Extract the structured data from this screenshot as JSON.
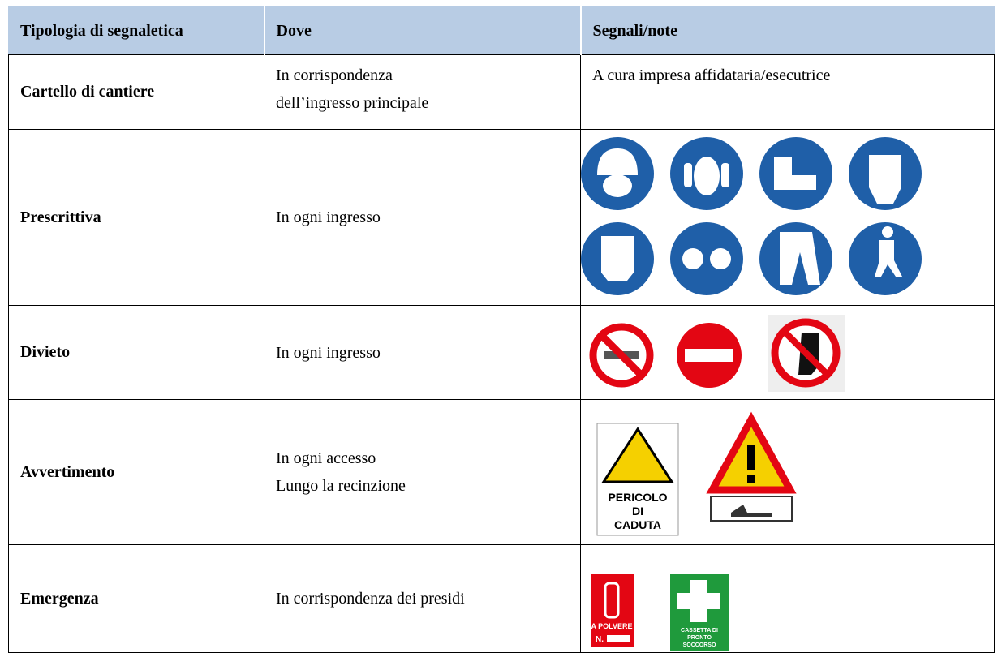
{
  "table": {
    "header": [
      "Tipologia di segnaletica",
      "Dove",
      "Segnali/note"
    ],
    "rows": [
      {
        "type": "Cartello di cantiere",
        "where": [
          "In corrispondenza",
          "dell’ingresso principale"
        ],
        "notes": "A cura impresa affidataria/esecutrice"
      },
      {
        "type": "Prescrittiva",
        "where": [
          "In ogni ingresso"
        ]
      },
      {
        "type": "Divieto",
        "where": [
          "In ogni ingresso"
        ]
      },
      {
        "type": "Avvertimento",
        "where": [
          "In ogni accesso",
          "Lungo la recinzione"
        ],
        "sign_texts": [
          "PERICOLO",
          "DI",
          "CADUTA"
        ]
      },
      {
        "type": "Emergenza",
        "where": [
          "In corrispondenza dei presidi"
        ],
        "sign_texts": [
          "A POLVERE",
          "N.",
          "CASSETTA DI",
          "PRONTO",
          "SOCCORSO"
        ]
      }
    ]
  }
}
